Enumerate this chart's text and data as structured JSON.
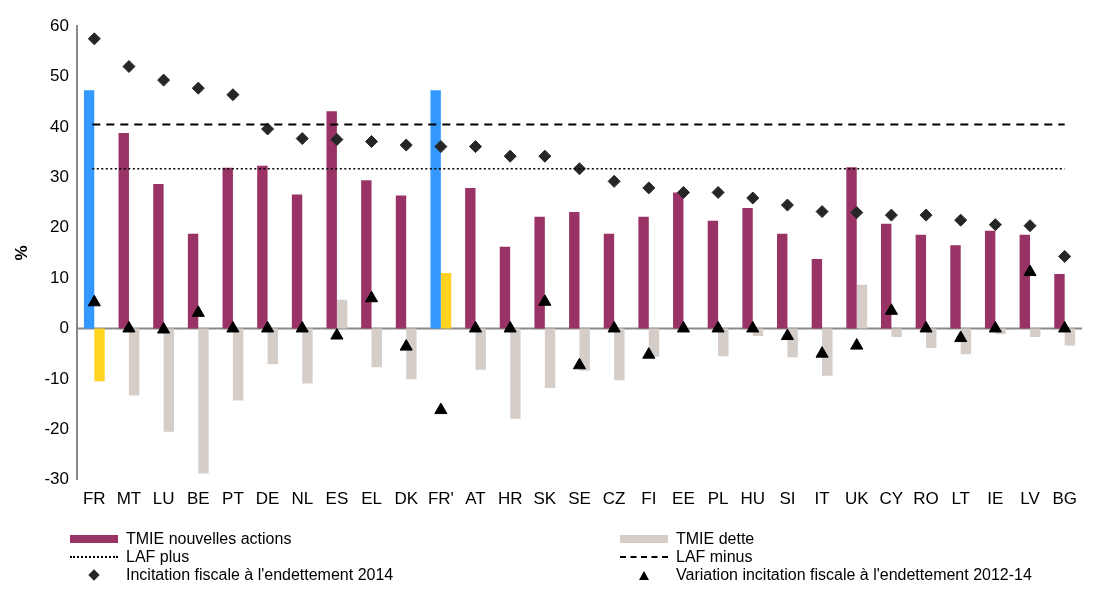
{
  "chart_data": {
    "type": "bar",
    "ylabel": "%",
    "categories": [
      "FR",
      "MT",
      "LU",
      "BE",
      "PT",
      "DE",
      "NL",
      "ES",
      "EL",
      "DK",
      "FR'",
      "AT",
      "HR",
      "SK",
      "SE",
      "CZ",
      "FI",
      "EE",
      "PL",
      "HU",
      "SI",
      "IT",
      "UK",
      "CY",
      "RO",
      "LT",
      "IE",
      "LV",
      "BG"
    ],
    "series": [
      {
        "name": "TMIE nouvelles actions",
        "color": "#993366",
        "colors": [
          "#3399ff",
          "#993366",
          "#993366",
          "#993366",
          "#993366",
          "#993366",
          "#993366",
          "#993366",
          "#993366",
          "#993366",
          "#3399ff",
          "#993366",
          "#993366",
          "#993366",
          "#993366",
          "#993366",
          "#993366",
          "#993366",
          "#993366",
          "#993366",
          "#993366",
          "#993366",
          "#993366",
          "#993366",
          "#993366",
          "#993366",
          "#993366",
          "#993366",
          "#993366"
        ],
        "values": [
          47.3,
          38.8,
          28.7,
          18.8,
          31.9,
          32.3,
          26.6,
          43.1,
          29.4,
          26.4,
          47.3,
          27.9,
          16.2,
          22.2,
          23.1,
          18.8,
          22.2,
          27.0,
          21.4,
          23.9,
          18.8,
          13.8,
          32.0,
          20.8,
          18.6,
          16.5,
          19.4,
          18.6,
          10.8
        ]
      },
      {
        "name": "TMIE dette",
        "color": "#d5cdc8",
        "colors": [
          "#ffd320",
          "#d5cdc8",
          "#d5cdc8",
          "#d5cdc8",
          "#d5cdc8",
          "#d5cdc8",
          "#d5cdc8",
          "#d5cdc8",
          "#d5cdc8",
          "#d5cdc8",
          "#ffd320",
          "#d5cdc8",
          "#d5cdc8",
          "#d5cdc8",
          "#d5cdc8",
          "#d5cdc8",
          "#d5cdc8",
          "#d5cdc8",
          "#d5cdc8",
          "#d5cdc8",
          "#d5cdc8",
          "#d5cdc8",
          "#d5cdc8",
          "#d5cdc8",
          "#d5cdc8",
          "#d5cdc8",
          "#d5cdc8",
          "#d5cdc8",
          "#d5cdc8"
        ],
        "values": [
          -10.5,
          -13.3,
          -20.5,
          -28.8,
          -14.3,
          -7.1,
          -10.9,
          5.7,
          -7.7,
          -10.1,
          11.0,
          -8.2,
          -17.9,
          -11.8,
          -8.4,
          -10.3,
          -5.6,
          null,
          -5.5,
          -1.5,
          -5.7,
          -9.4,
          8.7,
          -1.7,
          -3.9,
          -5.1,
          -1.1,
          -1.7,
          -3.4
        ]
      },
      {
        "name": "Incitation fiscale à l'endettement 2014",
        "type": "scatter",
        "marker": "diamond",
        "color": "#262626",
        "values": [
          57.5,
          52.0,
          49.3,
          47.7,
          46.4,
          39.6,
          37.7,
          37.5,
          37.1,
          36.4,
          36.1,
          36.1,
          34.2,
          34.2,
          31.7,
          29.2,
          27.9,
          27.0,
          27.0,
          25.9,
          24.5,
          23.2,
          23.0,
          22.5,
          22.5,
          21.5,
          20.6,
          20.4,
          14.3
        ]
      },
      {
        "name": "Variation incitation fiscale à l'endettement 2012-14",
        "type": "scatter",
        "marker": "triangle",
        "color": "#000000",
        "values": [
          5.2,
          0,
          -0.2,
          3.1,
          0,
          0,
          0,
          -1.4,
          6.0,
          -3.6,
          -16.2,
          0,
          0,
          5.3,
          -7.3,
          0,
          -5.2,
          0,
          0,
          0,
          -1.5,
          -5.0,
          -3.4,
          3.5,
          0,
          -1.9,
          0,
          11.2,
          0
        ]
      }
    ],
    "ref_lines": [
      {
        "axis": "y",
        "value": 31.7,
        "label": "LAF plus",
        "line_style": "dotted",
        "color": "#000000"
      },
      {
        "axis": "y",
        "value": 40.5,
        "label": "LAF minus",
        "line_style": "dashed",
        "color": "#000000"
      }
    ],
    "ylim": [
      -30,
      60
    ],
    "yticks": [
      -30,
      -20,
      -10,
      0,
      10,
      20,
      30,
      40,
      50,
      60
    ],
    "grid": false,
    "legend": "bottom"
  }
}
